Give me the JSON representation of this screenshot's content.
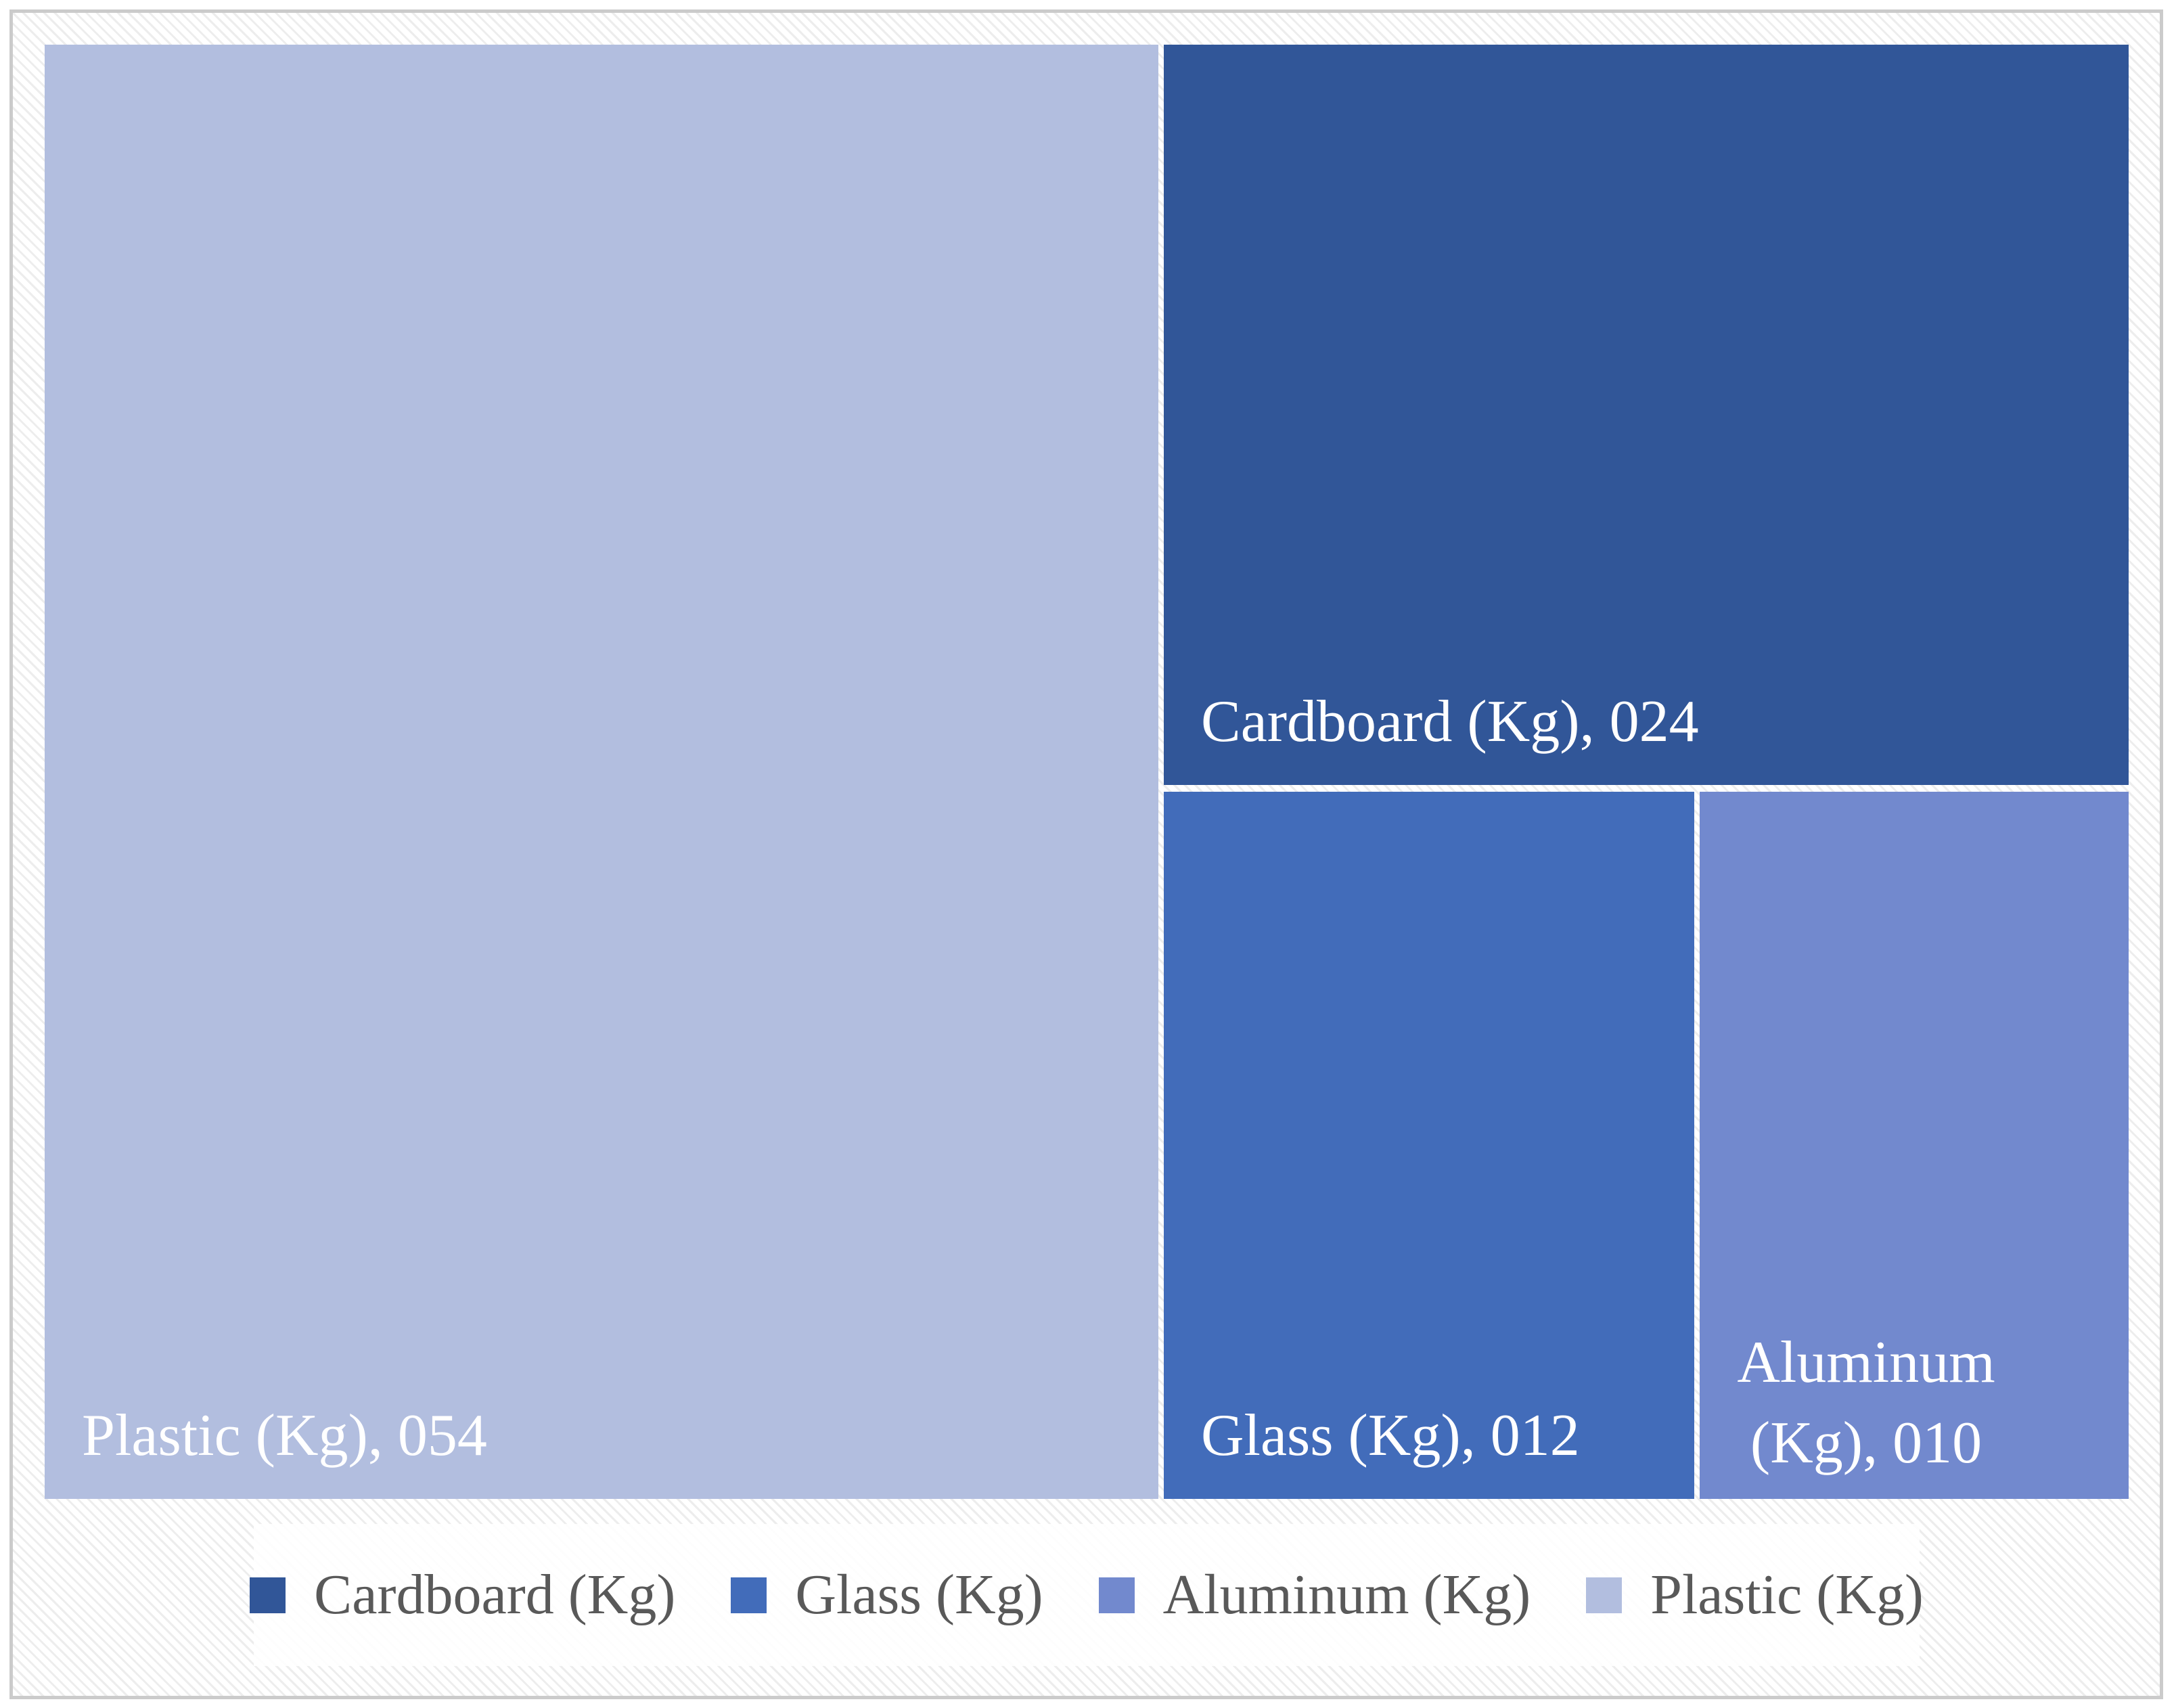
{
  "chart_data": {
    "type": "treemap",
    "title": "",
    "unit": "Kg",
    "categories": [
      "Cardboard (Kg)",
      "Glass (Kg)",
      "Aluminum (Kg)",
      "Plastic (Kg)"
    ],
    "values": [
      24,
      12,
      10,
      54
    ],
    "value_format": "zero-padded-3-digits",
    "layout": "legend bottom, no axes, no title",
    "tiles": [
      {
        "name": "Plastic (Kg)",
        "value": 54,
        "label": "Plastic (Kg), 054",
        "color": "#B2BEDF",
        "text_color": "#FFFFFF"
      },
      {
        "name": "Cardboard (Kg)",
        "value": 24,
        "label": "Cardboard (Kg), 024",
        "color": "#315698",
        "text_color": "#FFFFFF"
      },
      {
        "name": "Glass (Kg)",
        "value": 12,
        "label": "Glass (Kg), 012",
        "color": "#426CBA",
        "text_color": "#FFFFFF"
      },
      {
        "name": "Aluminum (Kg)",
        "value": 10,
        "label": "Aluminum (Kg), 010",
        "color": "#7289CE",
        "text_color": "#FFFFFF"
      }
    ],
    "legend": {
      "position": "bottom",
      "text_color": "#595959",
      "items": [
        {
          "label": "Cardboard (Kg)",
          "color": "#315698"
        },
        {
          "label": "Glass (Kg)",
          "color": "#426CBA"
        },
        {
          "label": "Aluminum (Kg)",
          "color": "#7289CE"
        },
        {
          "label": "Plastic (Kg)",
          "color": "#B2BEDF"
        }
      ]
    },
    "frame_border_color": "#CBCBCB",
    "background_pattern": "white with light-gray diagonal hatch"
  }
}
